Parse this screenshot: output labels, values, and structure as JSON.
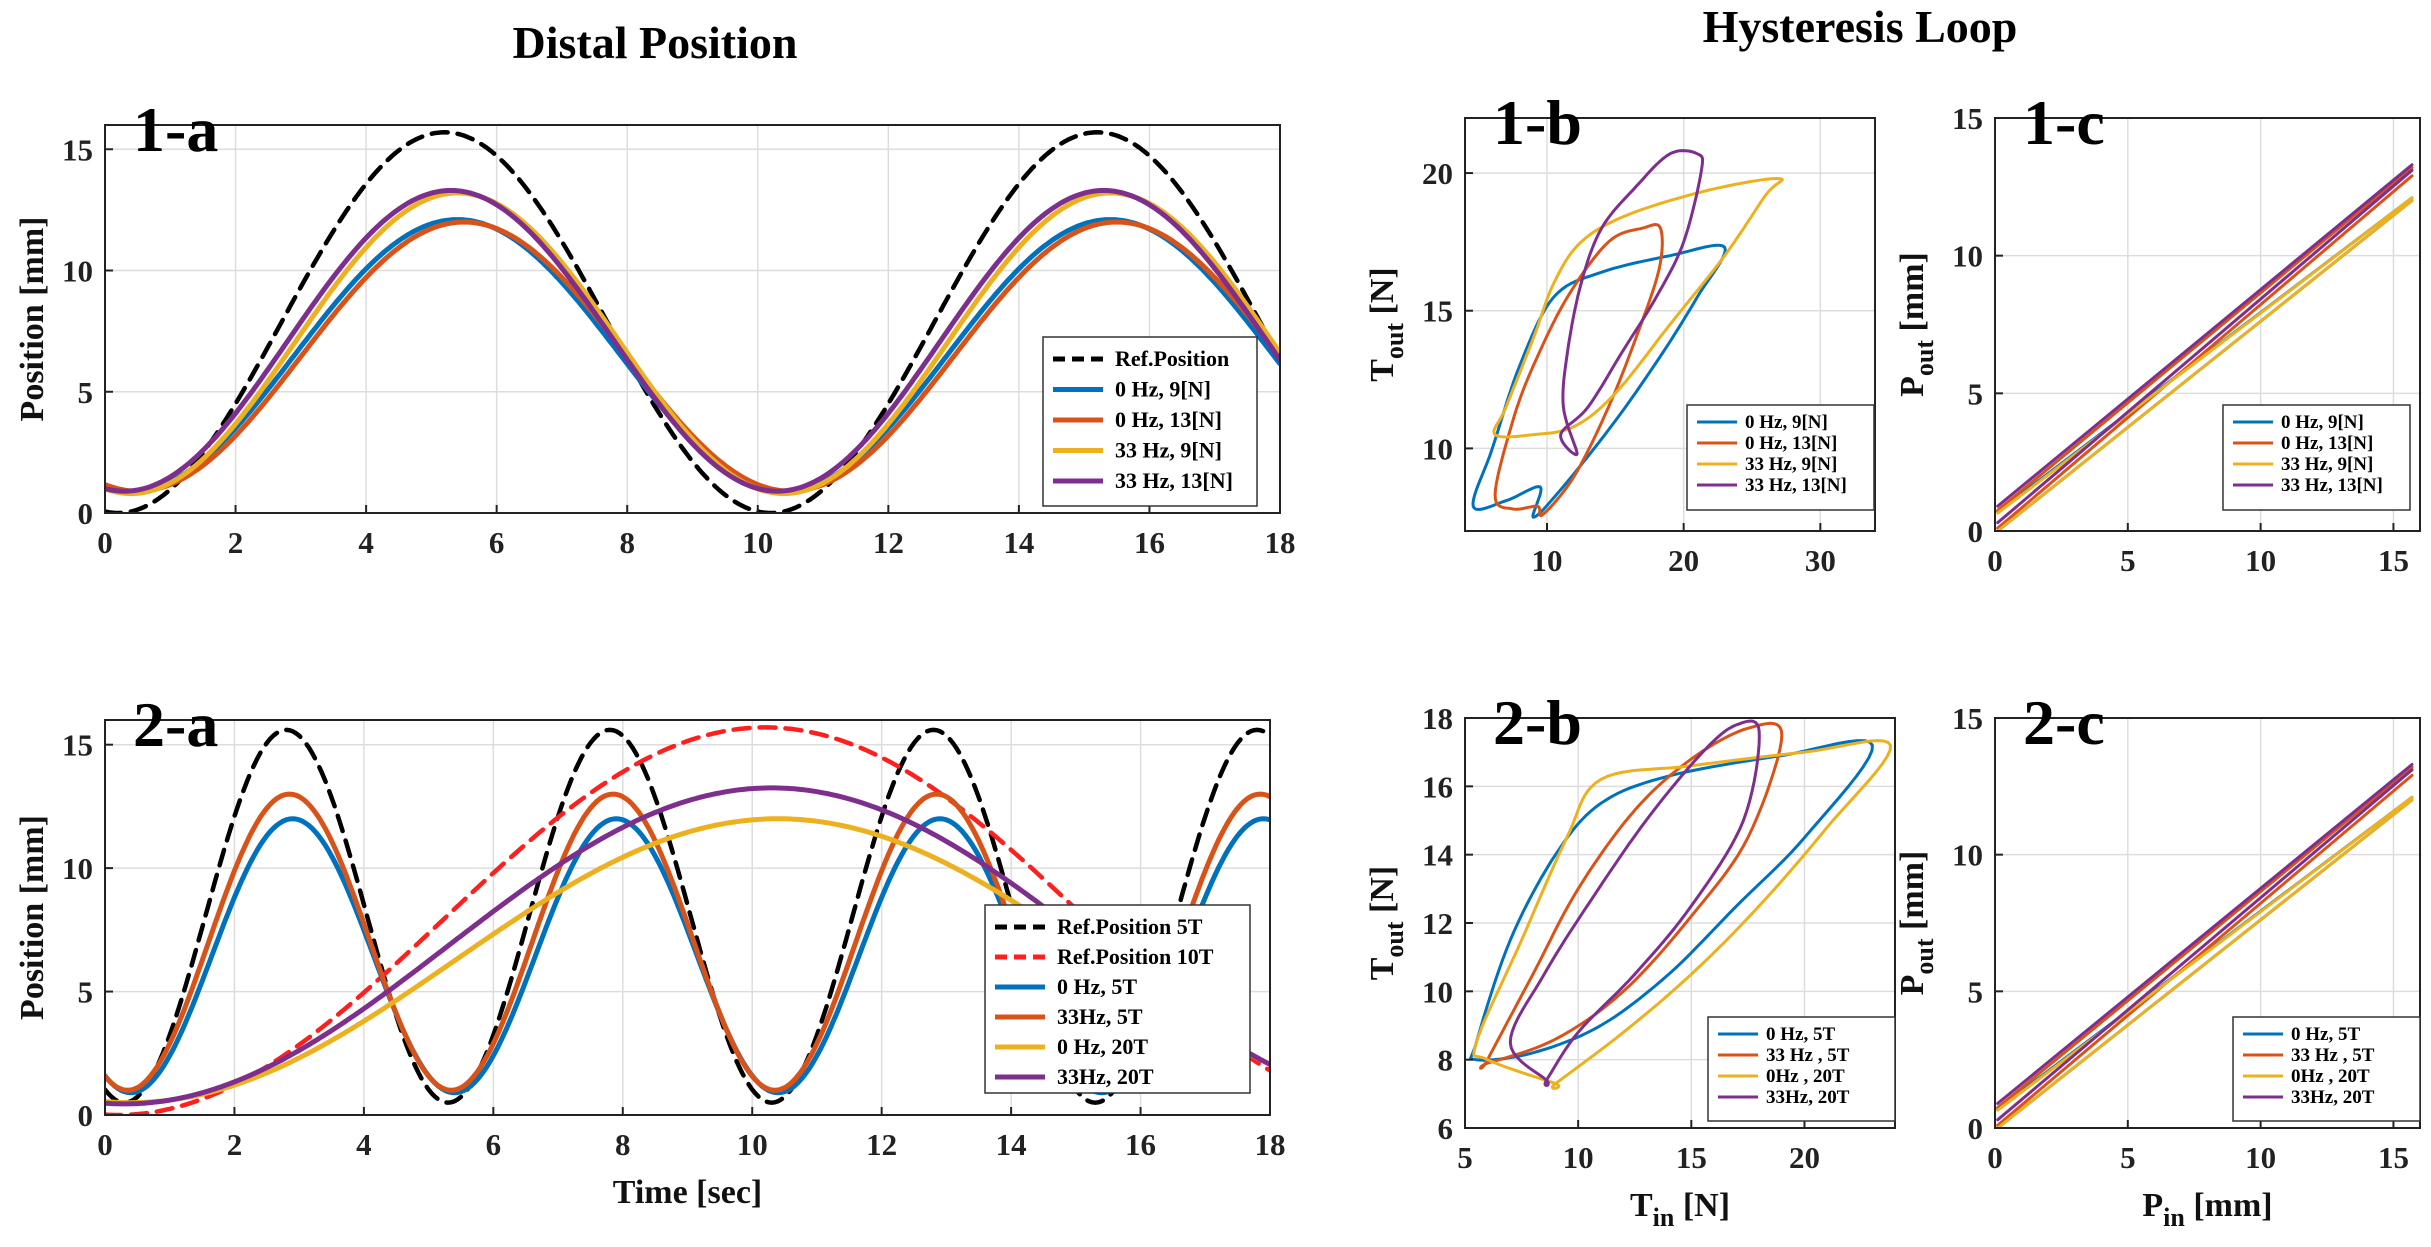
{
  "headings": {
    "left": "Distal Position",
    "right": "Hysteresis Loop"
  },
  "colors": {
    "ref": "#000000",
    "ref10": "#ff1f1f",
    "blue": "#0072bd",
    "orange": "#d95319",
    "yellow": "#edb120",
    "purple": "#7e2f8e",
    "grid": "#dddddd"
  },
  "chart_data": [
    {
      "id": "1-a",
      "label": "1-a",
      "type": "line",
      "ylabel": "Position [mm]",
      "xlabel": "",
      "xlim": [
        0,
        18
      ],
      "ylim": [
        0,
        16
      ],
      "xticks": [
        "0",
        "2",
        "4",
        "6",
        "8",
        "10",
        "12",
        "14",
        "16",
        "18"
      ],
      "yticks": [
        "0",
        "5",
        "10",
        "15"
      ],
      "series": [
        {
          "name": "Ref.Position",
          "color": "ref",
          "dash": true,
          "period": 10,
          "amp": 7.85,
          "offset": 7.85,
          "peak": 5.2
        },
        {
          "name": "0 Hz, 9[N]",
          "color": "blue",
          "period": 10,
          "amp": 5.6,
          "offset": 6.5,
          "peak": 5.4
        },
        {
          "name": "0 Hz, 13[N]",
          "color": "orange",
          "period": 10,
          "amp": 5.55,
          "offset": 6.45,
          "peak": 5.5
        },
        {
          "name": "33 Hz, 9[N]",
          "color": "yellow",
          "period": 10,
          "amp": 6.2,
          "offset": 7.0,
          "peak": 5.4
        },
        {
          "name": "33 Hz, 13[N]",
          "color": "purple",
          "period": 10,
          "amp": 6.2,
          "offset": 7.1,
          "peak": 5.3
        }
      ]
    },
    {
      "id": "2-a",
      "label": "2-a",
      "type": "line",
      "ylabel": "Position [mm]",
      "xlabel": "Time [sec]",
      "xlim": [
        0,
        18
      ],
      "ylim": [
        0,
        16
      ],
      "xticks": [
        "0",
        "2",
        "4",
        "6",
        "8",
        "10",
        "12",
        "14",
        "16",
        "18"
      ],
      "yticks": [
        "0",
        "5",
        "10",
        "15"
      ],
      "series": [
        {
          "name": "Ref.Position 5T",
          "color": "ref",
          "dash": true,
          "period": 5,
          "amp": 7.55,
          "offset": 8.05,
          "peak": 2.8
        },
        {
          "name": "Ref.Position 10T",
          "color": "ref10",
          "dash": true,
          "period": 20,
          "amp": 7.85,
          "offset": 7.85,
          "peak": 10.2
        },
        {
          "name": "0 Hz, 5T",
          "color": "blue",
          "period": 5,
          "amp": 5.55,
          "offset": 6.45,
          "peak": 2.9
        },
        {
          "name": "33Hz, 5T",
          "color": "orange",
          "period": 5,
          "amp": 6.0,
          "offset": 7.0,
          "peak": 2.85
        },
        {
          "name": "0 Hz, 20T",
          "color": "yellow",
          "period": 20,
          "amp": 5.75,
          "offset": 6.25,
          "peak": 10.4
        },
        {
          "name": "33Hz, 20T",
          "color": "purple",
          "period": 20,
          "amp": 6.4,
          "offset": 6.85,
          "peak": 10.3
        }
      ]
    },
    {
      "id": "1-b",
      "label": "1-b",
      "type": "line",
      "ylabel": "T_out [N]",
      "xlabel": "",
      "xlim": [
        4,
        34
      ],
      "ylim": [
        7,
        22
      ],
      "xticks": [
        "10",
        "20",
        "30"
      ],
      "yticks": [
        "10",
        "15",
        "20"
      ],
      "series": [
        {
          "name": "0 Hz, 9[N]",
          "color": "blue",
          "loop": [
            [
              9,
              7.5
            ],
            [
              11,
              8.5
            ],
            [
              15,
              11
            ],
            [
              18.5,
              13.5
            ],
            [
              21,
              15.5
            ],
            [
              23,
              17.3
            ],
            [
              19,
              17
            ],
            [
              14,
              16.4
            ],
            [
              10.5,
              15.5
            ],
            [
              8,
              13
            ],
            [
              6,
              10
            ],
            [
              4.6,
              7.9
            ],
            [
              7,
              8.1
            ],
            [
              9.5,
              8.6
            ]
          ]
        },
        {
          "name": "0 Hz, 13[N]",
          "color": "orange",
          "loop": [
            [
              9.7,
              7.6
            ],
            [
              12,
              9
            ],
            [
              14.5,
              11.5
            ],
            [
              16.5,
              14
            ],
            [
              18.2,
              16.5
            ],
            [
              18.3,
              18
            ],
            [
              17,
              18
            ],
            [
              14.5,
              17.5
            ],
            [
              11.5,
              15.5
            ],
            [
              9,
              13
            ],
            [
              7.5,
              11
            ],
            [
              6.2,
              8.3
            ],
            [
              7.5,
              7.8
            ],
            [
              9.3,
              7.9
            ]
          ]
        },
        {
          "name": "33 Hz, 9[N]",
          "color": "yellow",
          "loop": [
            [
              12,
              10.8
            ],
            [
              15,
              12
            ],
            [
              19,
              14.5
            ],
            [
              23,
              17
            ],
            [
              26,
              19.2
            ],
            [
              27,
              19.8
            ],
            [
              22,
              19.4
            ],
            [
              16,
              18.5
            ],
            [
              12.5,
              17.5
            ],
            [
              10.5,
              16
            ],
            [
              9,
              14
            ],
            [
              7,
              11.5
            ],
            [
              6.2,
              10.5
            ],
            [
              9,
              10.5
            ]
          ]
        },
        {
          "name": "33 Hz, 13[N]",
          "color": "purple",
          "loop": [
            [
              11,
              10.5
            ],
            [
              13,
              11.5
            ],
            [
              15.5,
              13.5
            ],
            [
              18,
              15.5
            ],
            [
              20,
              17.5
            ],
            [
              21.3,
              20.1
            ],
            [
              21,
              20.7
            ],
            [
              19,
              20.7
            ],
            [
              16.5,
              19.5
            ],
            [
              14,
              18
            ],
            [
              12.5,
              16
            ],
            [
              11.5,
              13.5
            ],
            [
              11.2,
              11.5
            ],
            [
              12.2,
              9.8
            ]
          ]
        }
      ]
    },
    {
      "id": "1-c",
      "label": "1-c",
      "type": "line",
      "ylabel": "P_out [mm]",
      "xlabel": "",
      "xlim": [
        0,
        16
      ],
      "ylim": [
        0,
        15
      ],
      "xticks": [
        "0",
        "5",
        "10",
        "15"
      ],
      "yticks": [
        "0",
        "5",
        "10",
        "15"
      ],
      "series": [
        {
          "name": "0 Hz, 9[N]",
          "color": "blue",
          "lines": [
            [
              [
                0.1,
                0.7
              ],
              [
                15.7,
                12.1
              ]
            ],
            [
              [
                0.1,
                0.0
              ],
              [
                15.7,
                12.0
              ]
            ]
          ]
        },
        {
          "name": "0 Hz, 13[N]",
          "color": "orange",
          "lines": [
            [
              [
                0.1,
                0.75
              ],
              [
                15.7,
                13.2
              ]
            ],
            [
              [
                0.1,
                0.1
              ],
              [
                15.7,
                12.9
              ]
            ]
          ]
        },
        {
          "name": "33 Hz, 9[N]",
          "color": "yellow",
          "lines": [
            [
              [
                0.1,
                0.65
              ],
              [
                15.7,
                12.1
              ]
            ],
            [
              [
                0.1,
                0.0
              ],
              [
                15.7,
                12.0
              ]
            ]
          ]
        },
        {
          "name": "33 Hz, 13[N]",
          "color": "purple",
          "lines": [
            [
              [
                0.1,
                0.9
              ],
              [
                15.7,
                13.3
              ]
            ],
            [
              [
                0.1,
                0.3
              ],
              [
                15.7,
                13.1
              ]
            ]
          ]
        }
      ]
    },
    {
      "id": "2-b",
      "label": "2-b",
      "type": "line",
      "ylabel": "T_out [N]",
      "xlabel": "T_in [N]",
      "xlim": [
        5,
        24
      ],
      "ylim": [
        6,
        18
      ],
      "xticks": [
        "5",
        "10",
        "15",
        "20"
      ],
      "yticks": [
        "6",
        "8",
        "10",
        "12",
        "14",
        "16",
        "18"
      ],
      "series": [
        {
          "name": "0 Hz, 5T",
          "color": "blue",
          "loop": [
            [
              5.5,
              8.0
            ],
            [
              8,
              8.2
            ],
            [
              11,
              9
            ],
            [
              14,
              10.5
            ],
            [
              17,
              12.5
            ],
            [
              20,
              14.5
            ],
            [
              23,
              17.2
            ],
            [
              19,
              16.9
            ],
            [
              14,
              16.3
            ],
            [
              11,
              15.5
            ],
            [
              9,
              14
            ],
            [
              7,
              11.5
            ],
            [
              5.5,
              8.5
            ]
          ]
        },
        {
          "name": "33 Hz , 5T",
          "color": "orange",
          "loop": [
            [
              6,
              7.9
            ],
            [
              9,
              8.6
            ],
            [
              12,
              10
            ],
            [
              15,
              12.2
            ],
            [
              17.5,
              14.5
            ],
            [
              19,
              17.5
            ],
            [
              17.5,
              17.7
            ],
            [
              15,
              16.8
            ],
            [
              12.5,
              15.3
            ],
            [
              10,
              13
            ],
            [
              8,
              10.5
            ],
            [
              6,
              8
            ]
          ]
        },
        {
          "name": "0Hz , 20T",
          "color": "yellow",
          "loop": [
            [
              9,
              7.3
            ],
            [
              12,
              8.8
            ],
            [
              15,
              10.5
            ],
            [
              18,
              12.5
            ],
            [
              21,
              14.8
            ],
            [
              23.8,
              17.2
            ],
            [
              20,
              17
            ],
            [
              15,
              16.6
            ],
            [
              11,
              16.2
            ],
            [
              9.5,
              14.5
            ],
            [
              7.5,
              11.5
            ],
            [
              5.5,
              8.5
            ],
            [
              6,
              8
            ],
            [
              9,
              7.3
            ]
          ]
        },
        {
          "name": "33Hz, 20T",
          "color": "purple",
          "loop": [
            [
              8.6,
              7.4
            ],
            [
              10,
              8.8
            ],
            [
              12.5,
              10.5
            ],
            [
              15,
              12.5
            ],
            [
              17.3,
              15
            ],
            [
              18,
              17.6
            ],
            [
              17,
              17.8
            ],
            [
              15.5,
              17
            ],
            [
              13,
              15
            ],
            [
              10.5,
              12.6
            ],
            [
              8.5,
              10.5
            ],
            [
              7,
              8.5
            ],
            [
              8.6,
              7.4
            ]
          ]
        }
      ]
    },
    {
      "id": "2-c",
      "label": "2-c",
      "type": "line",
      "ylabel": "P_out [mm]",
      "xlabel": "P_in [mm]",
      "xlim": [
        0,
        16
      ],
      "ylim": [
        0,
        15
      ],
      "xticks": [
        "0",
        "5",
        "10",
        "15"
      ],
      "yticks": [
        "0",
        "5",
        "10",
        "15"
      ],
      "series": [
        {
          "name": "0 Hz, 5T",
          "color": "blue",
          "lines": [
            [
              [
                0.1,
                0.7
              ],
              [
                15.7,
                12.1
              ]
            ],
            [
              [
                0.1,
                0.0
              ],
              [
                15.7,
                12.0
              ]
            ]
          ]
        },
        {
          "name": "33 Hz , 5T",
          "color": "orange",
          "lines": [
            [
              [
                0.1,
                0.75
              ],
              [
                15.7,
                13.2
              ]
            ],
            [
              [
                0.1,
                0.1
              ],
              [
                15.7,
                12.9
              ]
            ]
          ]
        },
        {
          "name": "0Hz , 20T",
          "color": "yellow",
          "lines": [
            [
              [
                0.1,
                0.65
              ],
              [
                15.7,
                12.1
              ]
            ],
            [
              [
                0.1,
                0.0
              ],
              [
                15.7,
                12.0
              ]
            ]
          ]
        },
        {
          "name": "33Hz, 20T",
          "color": "purple",
          "lines": [
            [
              [
                0.1,
                0.9
              ],
              [
                15.7,
                13.3
              ]
            ],
            [
              [
                0.1,
                0.3
              ],
              [
                15.7,
                13.1
              ]
            ]
          ]
        }
      ]
    }
  ]
}
